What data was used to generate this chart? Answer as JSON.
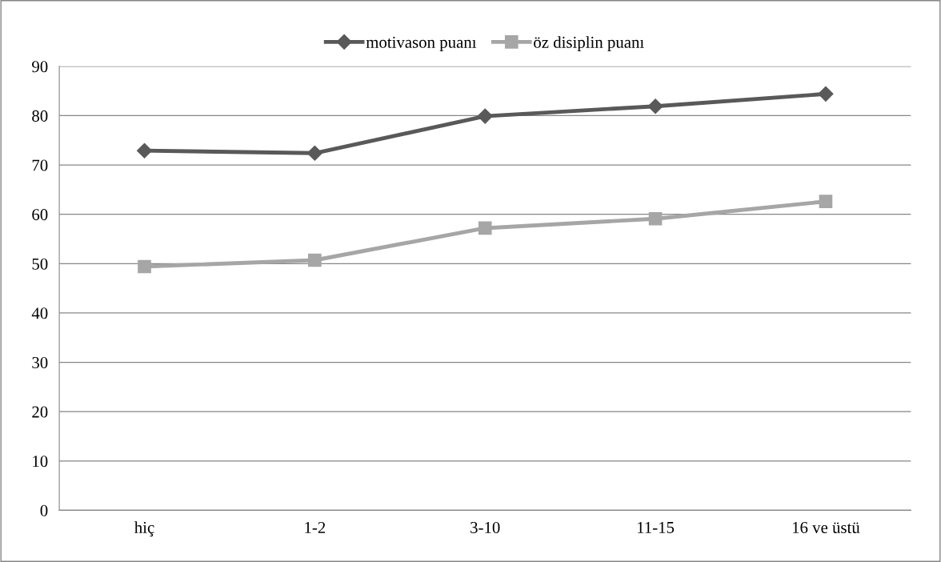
{
  "chart_data": {
    "type": "line",
    "categories": [
      "hiç",
      "1-2",
      "3-10",
      "11-15",
      "16 ve üstü"
    ],
    "series": [
      {
        "name": "motivason puanı",
        "color": "#595959",
        "marker": "diamond",
        "values": [
          72.9,
          72.4,
          79.9,
          81.9,
          84.4
        ]
      },
      {
        "name": "öz disiplin puanı",
        "color": "#a6a6a6",
        "marker": "square",
        "values": [
          49.4,
          50.7,
          57.2,
          59.1,
          62.6
        ]
      }
    ],
    "ylim": [
      0,
      90
    ],
    "yticks": [
      0,
      10,
      20,
      30,
      40,
      50,
      60,
      70,
      80,
      90
    ],
    "grid": "y",
    "legend": "top",
    "line_style": "solid"
  }
}
